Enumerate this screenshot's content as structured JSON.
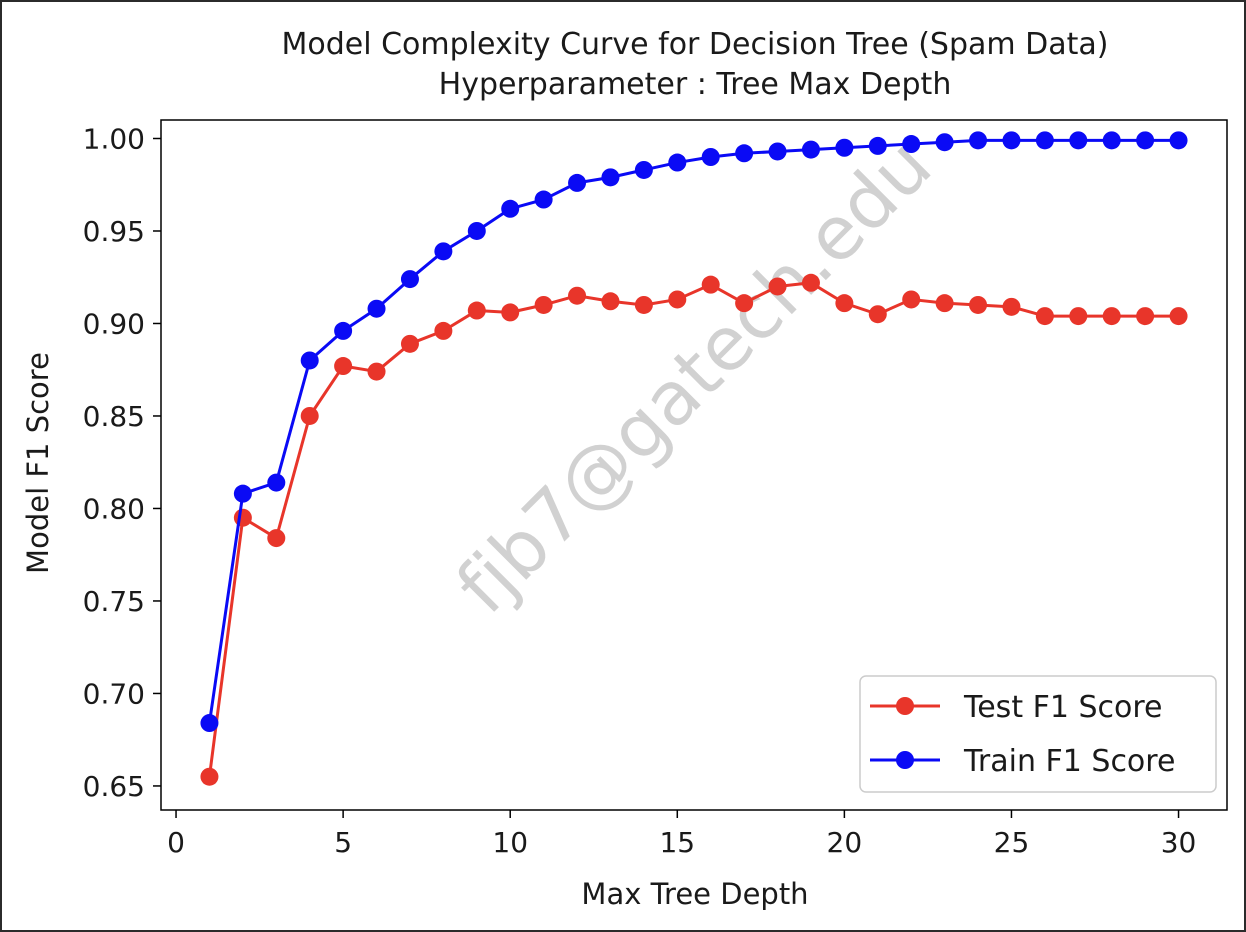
{
  "chart_data": {
    "type": "line",
    "title": [
      "Model Complexity Curve for Decision Tree (Spam Data)",
      "Hyperparameter : Tree Max Depth"
    ],
    "xlabel": "Max Tree Depth",
    "ylabel": "Model F1 Score",
    "xlim": [
      -0.45,
      31.45
    ],
    "ylim": [
      0.637,
      1.01
    ],
    "xticks": [
      0,
      5,
      10,
      15,
      20,
      25,
      30
    ],
    "xtick_labels": [
      "0",
      "5",
      "10",
      "15",
      "20",
      "25",
      "30"
    ],
    "yticks": [
      0.65,
      0.7,
      0.75,
      0.8,
      0.85,
      0.9,
      0.95,
      1.0
    ],
    "ytick_labels": [
      "0.65",
      "0.70",
      "0.75",
      "0.80",
      "0.85",
      "0.90",
      "0.95",
      "1.00"
    ],
    "grid": false,
    "legend_position": "lower-right",
    "x": [
      1,
      2,
      3,
      4,
      5,
      6,
      7,
      8,
      9,
      10,
      11,
      12,
      13,
      14,
      15,
      16,
      17,
      18,
      19,
      20,
      21,
      22,
      23,
      24,
      25,
      26,
      27,
      28,
      29,
      30
    ],
    "series": [
      {
        "name": "Test F1 Score",
        "color": "#e8352a",
        "marker": "circle",
        "values": [
          0.655,
          0.795,
          0.784,
          0.85,
          0.877,
          0.874,
          0.889,
          0.896,
          0.907,
          0.906,
          0.91,
          0.915,
          0.912,
          0.91,
          0.913,
          0.921,
          0.911,
          0.92,
          0.922,
          0.911,
          0.905,
          0.913,
          0.911,
          0.91,
          0.909,
          0.904,
          0.904,
          0.904,
          0.904,
          0.904
        ]
      },
      {
        "name": "Train F1 Score",
        "color": "#0a0af5",
        "marker": "circle",
        "values": [
          0.684,
          0.808,
          0.814,
          0.88,
          0.896,
          0.908,
          0.924,
          0.939,
          0.95,
          0.962,
          0.967,
          0.976,
          0.979,
          0.983,
          0.987,
          0.99,
          0.992,
          0.993,
          0.994,
          0.995,
          0.996,
          0.997,
          0.998,
          0.999,
          0.999,
          0.999,
          0.999,
          0.999,
          0.999,
          0.999
        ]
      }
    ],
    "watermark": "fjb7@gatech.edu"
  }
}
